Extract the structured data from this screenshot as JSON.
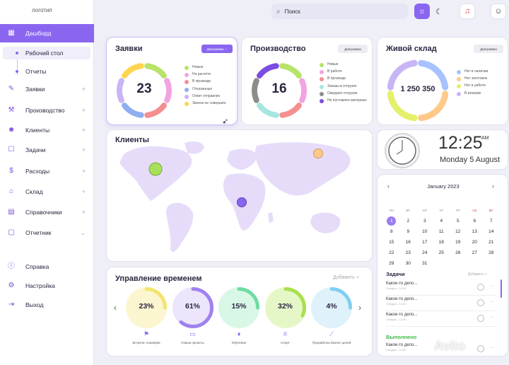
{
  "sidebar": {
    "logo": "логотип",
    "items": [
      {
        "label": "Дашборд"
      },
      {
        "label": "Заявки"
      },
      {
        "label": "Производство"
      },
      {
        "label": "Клиенты"
      },
      {
        "label": "Задачи"
      },
      {
        "label": "Расходы"
      },
      {
        "label": "Склад"
      },
      {
        "label": "Справочники"
      },
      {
        "label": "Отчетник"
      },
      {
        "label": "Справка"
      },
      {
        "label": "Настройка"
      },
      {
        "label": "Выход"
      }
    ],
    "sub_items": [
      {
        "label": "Рабочий стол"
      },
      {
        "label": "Отчеты"
      }
    ],
    "plus": "+"
  },
  "topbar": {
    "search_placeholder": "Поиск"
  },
  "requests": {
    "title": "Заявки",
    "dropdown": "Диаграмма",
    "total": "23",
    "legend": [
      "Новые",
      "На расчёте",
      "В прозводе",
      "Отказанные",
      "Ответ отправлен",
      "Звонок не совершён"
    ],
    "colors": [
      "#b7e36a",
      "#f2a3e0",
      "#f58f8f",
      "#8faef0",
      "#c9b4f5",
      "#ffd54f"
    ]
  },
  "production": {
    "title": "Производство",
    "dropdown": "Диаграмма",
    "total": "16",
    "legend": [
      "Новые",
      "В работе",
      "В прозводе",
      "Заказы в отгрузке",
      "Ожидают отгрузки",
      "Не поставлен материал"
    ],
    "colors": [
      "#b7e36a",
      "#f2a3e0",
      "#f58f8f",
      "#a7e6e0",
      "#8c8c8c",
      "#7b4de0"
    ]
  },
  "warehouse": {
    "title": "Живой склад",
    "dropdown": "Диаграмма",
    "total": "1 250 350",
    "legend": [
      "Нет в наличии",
      "Нет заготовок",
      "Нет в работе",
      "В резерве"
    ],
    "colors": [
      "#a8c2ff",
      "#ffc98a",
      "#e4f06a",
      "#c8b5f5"
    ]
  },
  "clients": {
    "title": "Клиенты"
  },
  "clock": {
    "time": "12:25",
    "ampm": "AM",
    "date": "Monday 5 August"
  },
  "calendar": {
    "month": "January 2023",
    "prev": "‹",
    "next": "›",
    "days": [
      "ПН",
      "ВТ",
      "СР",
      "ЧТ",
      "ПТ",
      "СБ",
      "ВС"
    ],
    "weeks": [
      [
        "1",
        "2",
        "3",
        "4",
        "5",
        "6",
        "7"
      ],
      [
        "8",
        "9",
        "10",
        "11",
        "12",
        "13",
        "14"
      ],
      [
        "15",
        "16",
        "17",
        "18",
        "19",
        "20",
        "21"
      ],
      [
        "22",
        "23",
        "24",
        "25",
        "26",
        "27",
        "28"
      ],
      [
        "29",
        "30",
        "31",
        "",
        "",
        "",
        ""
      ]
    ]
  },
  "tasks": {
    "title": "Задачи",
    "add": "Добавить +",
    "items": [
      {
        "title": "Какое-то дело...",
        "date": "Сегодня – 12:00"
      },
      {
        "title": "Какое-то дело...",
        "date": "Сегодня – 12:00"
      },
      {
        "title": "Какое-то дело...",
        "date": "Сегодня – 12:00"
      }
    ],
    "done_title": "Выполнено",
    "done_items": [
      {
        "title": "Какое-то дело...",
        "date": "Сегодня – 12:00"
      }
    ]
  },
  "time_mgmt": {
    "title": "Управление временем",
    "add": "Добавить +",
    "items": [
      {
        "percent": "23%",
        "value": 0.23,
        "label": "Встречи, планёрки",
        "bg": "#fbf6cf",
        "ring": "#f4e46e",
        "icon": "flag-icon"
      },
      {
        "percent": "61%",
        "value": 0.61,
        "label": "Новые проекты",
        "bg": "#ece5fb",
        "ring": "#9f82ee",
        "icon": "book-icon"
      },
      {
        "percent": "15%",
        "value": 0.15,
        "label": "Обучение",
        "bg": "#d9f7e7",
        "ring": "#6fdca1",
        "icon": "graduation-cap-icon"
      },
      {
        "percent": "32%",
        "value": 0.32,
        "label": "Спорт",
        "bg": "#e6f7c7",
        "ring": "#a8e04e",
        "icon": "trophy-icon"
      },
      {
        "percent": "4%",
        "value": 0.04,
        "label": "Проработка бизнес целей",
        "bg": "#dff1fb",
        "ring": "#7fd0ee",
        "icon": "chart-icon"
      }
    ]
  },
  "watermark": "Avito"
}
